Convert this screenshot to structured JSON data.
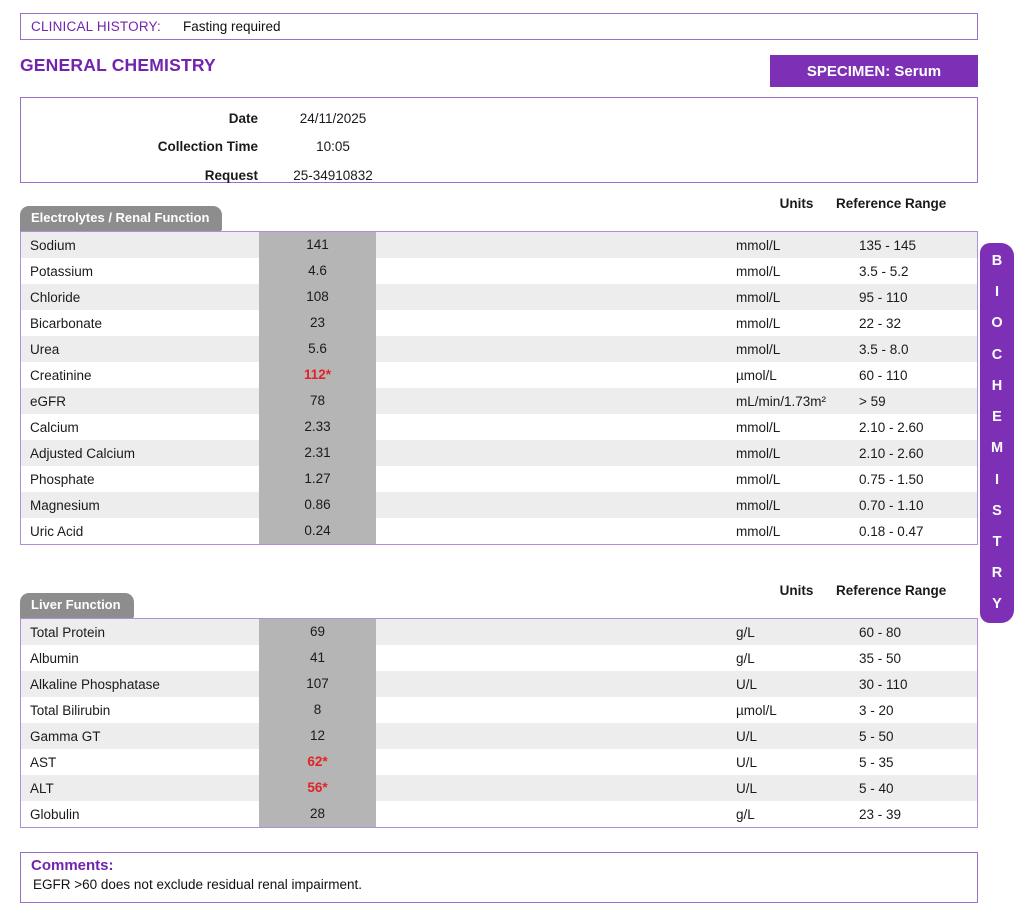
{
  "colors": {
    "accent": "#7d2fb5",
    "accent_text": "#7324ad",
    "box_border": "#9b6ec9",
    "table_border": "#b18fd6",
    "tab_gray": "#8d8d8d",
    "value_cell_gray": "#b5b5b5",
    "row_alt": "#eeedee",
    "abnormal_red": "#e32225"
  },
  "clinical_history": {
    "label": "CLINICAL HISTORY:",
    "value": "Fasting required"
  },
  "header": {
    "title": "GENERAL CHEMISTRY",
    "specimen_label": "SPECIMEN: Serum"
  },
  "request_info": {
    "rows": [
      {
        "label": "Date",
        "value": "24/11/2025"
      },
      {
        "label": "Collection Time",
        "value": "10:05"
      },
      {
        "label": "Request",
        "value": "25-34910832"
      }
    ]
  },
  "column_headers": {
    "units": "Units",
    "reference_range": "Reference Range"
  },
  "sidebar_tab": {
    "label": "BIOCHEMISTRY",
    "letters": [
      "B",
      "I",
      "O",
      "C",
      "H",
      "E",
      "M",
      "I",
      "S",
      "T",
      "R",
      "Y"
    ]
  },
  "panels": [
    {
      "title": "Electrolytes / Renal Function",
      "rows": [
        {
          "name": "Sodium",
          "value": "141",
          "abnormal": false,
          "units": "mmol/L",
          "reference": "135 - 145"
        },
        {
          "name": "Potassium",
          "value": "4.6",
          "abnormal": false,
          "units": "mmol/L",
          "reference": "3.5 - 5.2"
        },
        {
          "name": "Chloride",
          "value": "108",
          "abnormal": false,
          "units": "mmol/L",
          "reference": "95 - 110"
        },
        {
          "name": "Bicarbonate",
          "value": "23",
          "abnormal": false,
          "units": "mmol/L",
          "reference": "22 - 32"
        },
        {
          "name": "Urea",
          "value": "5.6",
          "abnormal": false,
          "units": "mmol/L",
          "reference": "3.5 - 8.0"
        },
        {
          "name": "Creatinine",
          "value": "112*",
          "abnormal": true,
          "units": "µmol/L",
          "reference": "60 - 110"
        },
        {
          "name": "eGFR",
          "value": "78",
          "abnormal": false,
          "units": "mL/min/1.73m²",
          "reference": "> 59"
        },
        {
          "name": "Calcium",
          "value": "2.33",
          "abnormal": false,
          "units": "mmol/L",
          "reference": "2.10 - 2.60"
        },
        {
          "name": "Adjusted Calcium",
          "value": "2.31",
          "abnormal": false,
          "units": "mmol/L",
          "reference": "2.10 - 2.60"
        },
        {
          "name": "Phosphate",
          "value": "1.27",
          "abnormal": false,
          "units": "mmol/L",
          "reference": "0.75 - 1.50"
        },
        {
          "name": "Magnesium",
          "value": "0.86",
          "abnormal": false,
          "units": "mmol/L",
          "reference": "0.70 - 1.10"
        },
        {
          "name": "Uric Acid",
          "value": "0.24",
          "abnormal": false,
          "units": "mmol/L",
          "reference": "0.18 - 0.47"
        }
      ]
    },
    {
      "title": "Liver Function",
      "rows": [
        {
          "name": "Total Protein",
          "value": "69",
          "abnormal": false,
          "units": "g/L",
          "reference": "60 - 80"
        },
        {
          "name": "Albumin",
          "value": "41",
          "abnormal": false,
          "units": "g/L",
          "reference": "35 - 50"
        },
        {
          "name": "Alkaline Phosphatase",
          "value": "107",
          "abnormal": false,
          "units": "U/L",
          "reference": "30 - 110"
        },
        {
          "name": "Total Bilirubin",
          "value": "8",
          "abnormal": false,
          "units": "µmol/L",
          "reference": "3 - 20"
        },
        {
          "name": "Gamma GT",
          "value": "12",
          "abnormal": false,
          "units": "U/L",
          "reference": "5 - 50"
        },
        {
          "name": "AST",
          "value": "62*",
          "abnormal": true,
          "units": "U/L",
          "reference": "5 - 35"
        },
        {
          "name": "ALT",
          "value": "56*",
          "abnormal": true,
          "units": "U/L",
          "reference": "5 - 40"
        },
        {
          "name": "Globulin",
          "value": "28",
          "abnormal": false,
          "units": "g/L",
          "reference": "23 - 39"
        }
      ]
    }
  ],
  "comments": {
    "label": "Comments:",
    "text": "EGFR >60 does not exclude residual renal impairment."
  }
}
